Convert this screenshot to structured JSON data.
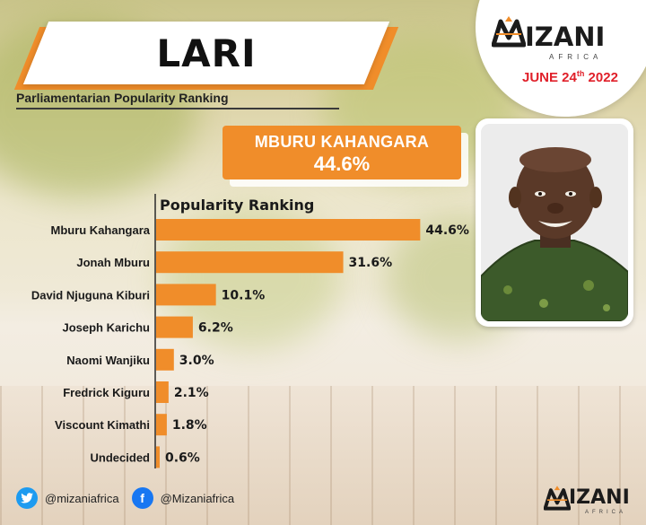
{
  "header": {
    "title": "LARI",
    "subtitle": "Parliamentarian Popularity Ranking"
  },
  "brand": {
    "logo_word": "IZANI",
    "logo_sub": "AFRICA",
    "date_main": "JUNE 24",
    "date_sup": "th",
    "date_year": " 2022",
    "accent_color": "#f08d2a",
    "date_color": "#e0202a"
  },
  "winner": {
    "name": "MBURU KAHANGARA",
    "percent": "44.6%"
  },
  "chart_data": {
    "type": "bar",
    "orientation": "horizontal",
    "title": "Popularity Ranking",
    "categories": [
      "Mburu Kahangara",
      "Jonah Mburu",
      "David Njuguna Kiburi",
      "Joseph Karichu",
      "Naomi Wanjiku",
      "Fredrick Kiguru",
      "Viscount Kimathi",
      "Undecided"
    ],
    "values": [
      44.6,
      31.6,
      10.1,
      6.2,
      3.0,
      2.1,
      1.8,
      0.6
    ],
    "value_labels": [
      "44.6%",
      "31.6%",
      "10.1%",
      "6.2%",
      "3.0%",
      "2.1%",
      "1.8%",
      "0.6%"
    ],
    "xlim": [
      0,
      50
    ],
    "grid": false,
    "legend": "none",
    "bar_color": "#f08d2a"
  },
  "footer": {
    "twitter_handle": "@mizaniafrica",
    "facebook_handle": "@Mizaniafrica",
    "twitter_icon": "twitter-icon",
    "facebook_icon": "facebook-icon"
  }
}
